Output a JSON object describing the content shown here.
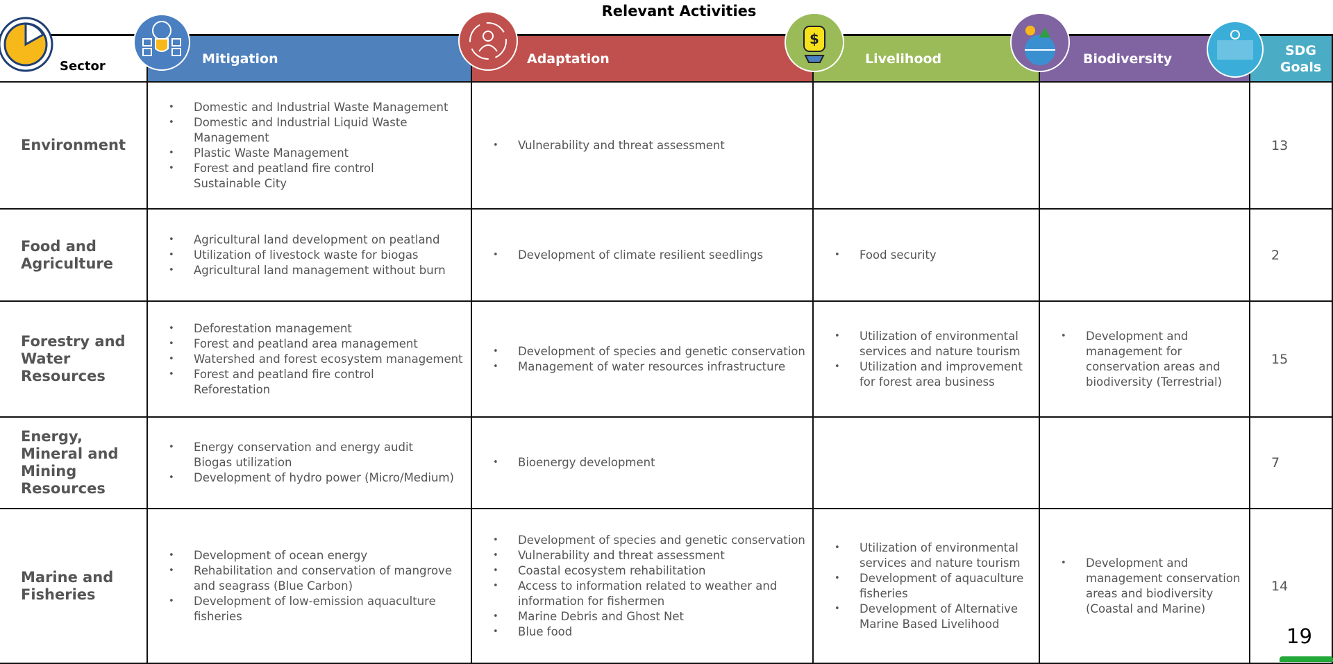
{
  "header": {
    "title": "Relevant Activities"
  },
  "table": {
    "columns": [
      "Sector",
      "Mitigation",
      "Adaptation",
      "Livelihood",
      "Biodiversity",
      "SDG Goals"
    ],
    "rows": [
      {
        "sector": "Environment",
        "mitigation": [
          "Domestic and Industrial Waste Management",
          "Domestic and Industrial Liquid Waste Management",
          "Plastic Waste Management",
          "Forest and peatland fire control\nSustainable City"
        ],
        "adaptation": [
          "Vulnerability and threat assessment"
        ],
        "livelihood": [],
        "biodiversity": [],
        "sdg": "13"
      },
      {
        "sector": "Food and Agriculture",
        "mitigation": [
          "Agricultural land development on peatland",
          "Utilization of livestock waste for biogas",
          "Agricultural land management without burn"
        ],
        "adaptation": [
          "Development of climate resilient seedlings"
        ],
        "livelihood": [
          "Food security"
        ],
        "biodiversity": [],
        "sdg": "2"
      },
      {
        "sector": "Forestry and Water Resources",
        "mitigation": [
          "Deforestation management",
          "Forest and peatland area management",
          "Watershed and forest ecosystem management",
          "Forest and peatland fire control\nReforestation"
        ],
        "adaptation": [
          "Development of species and genetic conservation",
          "Management of water resources infrastructure"
        ],
        "livelihood": [
          "Utilization of environmental services and nature tourism",
          "Utilization and improvement for forest area business"
        ],
        "biodiversity": [
          "Development and management for conservation areas and biodiversity (Terrestrial)"
        ],
        "sdg": "15"
      },
      {
        "sector": "Energy, Mineral and Mining Resources",
        "mitigation": [
          "Energy conservation and energy audit\nBiogas utilization",
          "Development of hydro power (Micro/Medium)"
        ],
        "adaptation": [
          "Bioenergy development"
        ],
        "livelihood": [],
        "biodiversity": [],
        "sdg": "7"
      },
      {
        "sector": "Marine and Fisheries",
        "mitigation": [
          "Development of ocean energy",
          "Rehabilitation and conservation of mangrove and seagrass (Blue Carbon)",
          "Development of low-emission aquaculture fisheries"
        ],
        "adaptation": [
          "Development of species and genetic conservation",
          "Vulnerability and threat assessment",
          "Coastal ecosystem rehabilitation",
          "Access to information related to weather and information for fishermen",
          "Marine Debris and Ghost Net",
          "Blue food"
        ],
        "livelihood": [
          "Utilization of environmental services and nature tourism",
          "Development of aquaculture fisheries",
          "Development of Alternative Marine Based Livelihood"
        ],
        "biodiversity": [
          "Development and management conservation areas and biodiversity (Coastal and Marine)"
        ],
        "sdg": "14"
      }
    ]
  },
  "footer": {
    "page": "19"
  }
}
